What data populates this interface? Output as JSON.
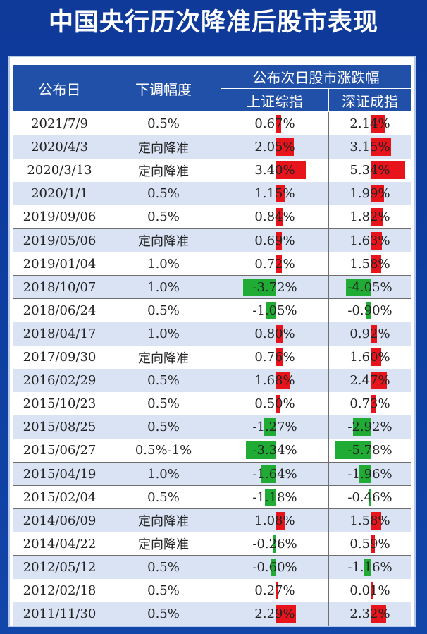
{
  "title": "中国央行历次降准后股市表现",
  "header": {
    "date": "公布日",
    "cut": "下调幅度",
    "group": "公布次日股市涨跌幅",
    "sh": "上证综指",
    "sz": "深证成指"
  },
  "colors": {
    "up": "#e8141c",
    "down": "#1fab34",
    "header": "#2150a8",
    "stripe": "#d9e3f4"
  },
  "chart_data": {
    "type": "table",
    "columns": [
      "公布日",
      "下调幅度",
      "上证综指",
      "深证成指"
    ],
    "rows": [
      {
        "date": "2021/7/9",
        "cut": "0.5%",
        "sh_label": "0.67%",
        "sh": 0.67,
        "sz_label": "2.14%",
        "sz": 2.14
      },
      {
        "date": "2020/4/3",
        "cut": "定向降准",
        "sh_label": "2.05%",
        "sh": 2.05,
        "sz_label": "3.15%",
        "sz": 3.15
      },
      {
        "date": "2020/3/13",
        "cut": "定向降准",
        "sh_label": "3.40%",
        "sh": 3.4,
        "sz_label": "5.34%",
        "sz": 5.34
      },
      {
        "date": "2020/1/1",
        "cut": "0.5%",
        "sh_label": "1.15%",
        "sh": 1.15,
        "sz_label": "1.99%",
        "sz": 1.99
      },
      {
        "date": "2019/09/06",
        "cut": "0.5%",
        "sh_label": "0.84%",
        "sh": 0.84,
        "sz_label": "1.82%",
        "sz": 1.82
      },
      {
        "date": "2019/05/06",
        "cut": "定向降准",
        "sh_label": "0.69%",
        "sh": 0.69,
        "sz_label": "1.63%",
        "sz": 1.63
      },
      {
        "date": "2019/01/04",
        "cut": "1.0%",
        "sh_label": "0.72%",
        "sh": 0.72,
        "sz_label": "1.58%",
        "sz": 1.58
      },
      {
        "date": "2018/10/07",
        "cut": "1.0%",
        "sh_label": "-3.72%",
        "sh": -3.72,
        "sz_label": "-4.05%",
        "sz": -4.05
      },
      {
        "date": "2018/06/24",
        "cut": "0.5%",
        "sh_label": "-1.05%",
        "sh": -1.05,
        "sz_label": "-0.90%",
        "sz": -0.9
      },
      {
        "date": "2018/04/17",
        "cut": "1.0%",
        "sh_label": "0.80%",
        "sh": 0.8,
        "sz_label": "0.92%",
        "sz": 0.92
      },
      {
        "date": "2017/09/30",
        "cut": "定向降准",
        "sh_label": "0.76%",
        "sh": 0.76,
        "sz_label": "1.60%",
        "sz": 1.6
      },
      {
        "date": "2016/02/29",
        "cut": "0.5%",
        "sh_label": "1.68%",
        "sh": 1.68,
        "sz_label": "2.47%",
        "sz": 2.47
      },
      {
        "date": "2015/10/23",
        "cut": "0.5%",
        "sh_label": "0.50%",
        "sh": 0.5,
        "sz_label": "0.73%",
        "sz": 0.73
      },
      {
        "date": "2015/08/25",
        "cut": "0.5%",
        "sh_label": "-1.27%",
        "sh": -1.27,
        "sz_label": "-2.92%",
        "sz": -2.92
      },
      {
        "date": "2015/06/27",
        "cut": "0.5%-1%",
        "sh_label": "-3.34%",
        "sh": -3.34,
        "sz_label": "-5.78%",
        "sz": -5.78
      },
      {
        "date": "2015/04/19",
        "cut": "1.0%",
        "sh_label": "-1.64%",
        "sh": -1.64,
        "sz_label": "-1.96%",
        "sz": -1.96
      },
      {
        "date": "2015/02/04",
        "cut": "0.5%",
        "sh_label": "-1.18%",
        "sh": -1.18,
        "sz_label": "-0.46%",
        "sz": -0.46
      },
      {
        "date": "2014/06/09",
        "cut": "定向降准",
        "sh_label": "1.08%",
        "sh": 1.08,
        "sz_label": "1.58%",
        "sz": 1.58
      },
      {
        "date": "2014/04/22",
        "cut": "定向降准",
        "sh_label": "-0.26%",
        "sh": -0.26,
        "sz_label": "0.59%",
        "sz": 0.59
      },
      {
        "date": "2012/05/12",
        "cut": "0.5%",
        "sh_label": "-0.60%",
        "sh": -0.6,
        "sz_label": "-1.16%",
        "sz": -1.16
      },
      {
        "date": "2012/02/18",
        "cut": "0.5%",
        "sh_label": "0.27%",
        "sh": 0.27,
        "sz_label": "0.01%",
        "sz": 0.01
      },
      {
        "date": "2011/11/30",
        "cut": "0.5%",
        "sh_label": "2.29%",
        "sh": 2.29,
        "sz_label": "2.32%",
        "sz": 2.32
      }
    ]
  }
}
